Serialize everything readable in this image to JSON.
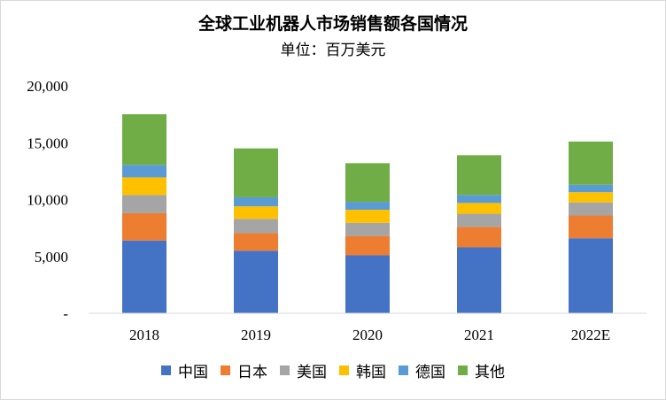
{
  "chart_data": {
    "type": "bar",
    "stacked": true,
    "title": "全球工业机器人市场销售额各国情况",
    "subtitle": "单位：百万美元",
    "categories": [
      "2018",
      "2019",
      "2020",
      "2021",
      "2022E"
    ],
    "ylim": [
      0,
      20000
    ],
    "y_ticks": [
      0,
      5000,
      10000,
      15000,
      20000
    ],
    "y_tick_labels": [
      "-",
      "5,000",
      "10,000",
      "15,000",
      "20,000"
    ],
    "grid": false,
    "legend_position": "bottom",
    "series": [
      {
        "name": "中国",
        "color": "#4472C4",
        "values": [
          6400,
          5500,
          5100,
          5800,
          6600
        ]
      },
      {
        "name": "日本",
        "color": "#ED7D31",
        "values": [
          2400,
          1550,
          1700,
          1800,
          2000
        ]
      },
      {
        "name": "美国",
        "color": "#A5A5A5",
        "values": [
          1600,
          1250,
          1150,
          1150,
          1150
        ]
      },
      {
        "name": "韩国",
        "color": "#FFC000",
        "values": [
          1550,
          1100,
          1150,
          950,
          900
        ]
      },
      {
        "name": "德国",
        "color": "#5B9BD5",
        "values": [
          1100,
          800,
          700,
          700,
          650
        ]
      },
      {
        "name": "其他",
        "color": "#70AD47",
        "values": [
          4450,
          4300,
          3400,
          3500,
          3800
        ]
      }
    ]
  }
}
